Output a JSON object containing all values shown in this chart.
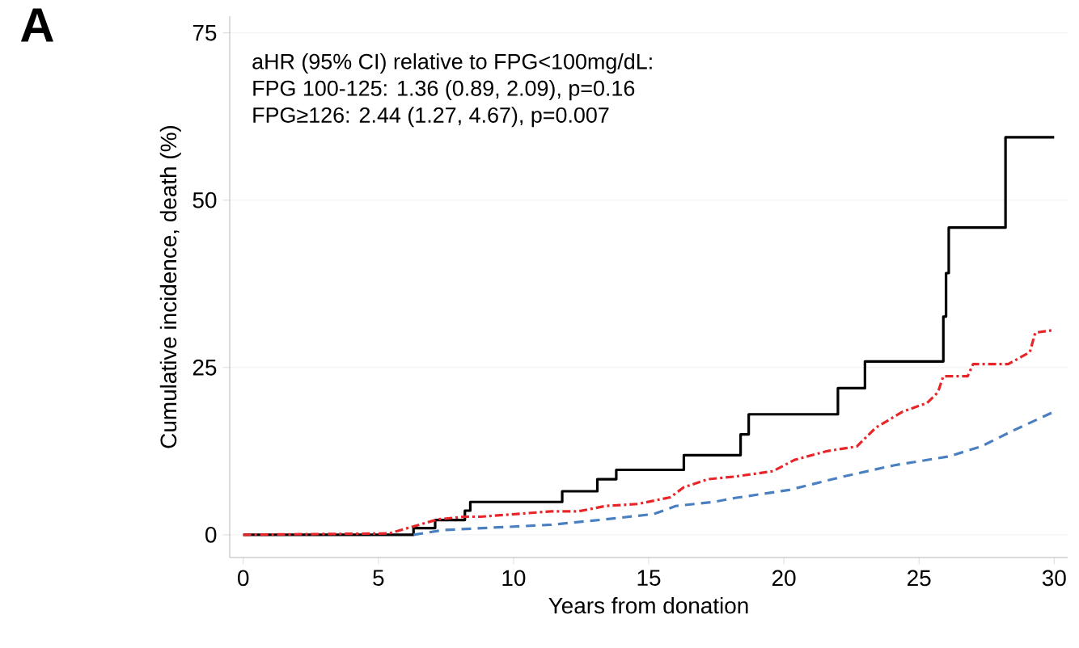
{
  "chart_data": {
    "type": "line",
    "title": "A",
    "xlabel": "Years from donation",
    "ylabel": "Cumulative incidence, death (%)",
    "annotations": [
      "aHR (95% CI) relative to FPG<100mg/dL:",
      "FPG 100-125: 1.36 (0.89, 2.09), p=0.16",
      "FPG≥126:      2.44 (1.27, 4.67), p=0.007"
    ],
    "xlim": [
      -0.5,
      30.5
    ],
    "ylim": [
      -3.4,
      77.5
    ],
    "xticks": [
      0,
      5,
      10,
      15,
      20,
      25,
      30
    ],
    "yticks": [
      0,
      25,
      50,
      75
    ],
    "grid": "y",
    "series": [
      {
        "type": "step",
        "color": "#000000",
        "line_style": "solid",
        "x": [
          0,
          6.3,
          7.1,
          8.2,
          8.4,
          11.8,
          13.1,
          13.8,
          16.3,
          18.4,
          18.7,
          22.0,
          23.0,
          25.9,
          26.0,
          26.1,
          28.2,
          30
        ],
        "values": [
          0,
          1.0,
          2.2,
          3.6,
          4.9,
          6.5,
          8.3,
          9.7,
          11.9,
          15.0,
          18.0,
          21.9,
          25.9,
          32.6,
          39.1,
          45.9,
          59.4,
          59.4
        ]
      },
      {
        "color": "#e8262a",
        "line_style": "dashdot",
        "x": [
          0,
          5.4,
          7.2,
          8.2,
          8.8,
          11.4,
          12.4,
          13.4,
          14.6,
          15.8,
          16.3,
          17.2,
          18.2,
          19.6,
          20.4,
          21.6,
          22.7,
          23.4,
          24.4,
          25.3,
          25.7,
          25.9,
          26.8,
          27.0,
          28.3,
          29.1,
          29.3,
          30
        ],
        "values": [
          0,
          0.2,
          2.3,
          2.7,
          2.7,
          3.5,
          3.5,
          4.3,
          4.6,
          5.6,
          7.1,
          8.3,
          8.7,
          9.5,
          11.2,
          12.5,
          13.2,
          16.0,
          18.4,
          19.7,
          21.3,
          23.7,
          23.7,
          25.5,
          25.5,
          27.3,
          30.2,
          30.6
        ]
      },
      {
        "color": "#4a7fc1",
        "line_style": "dashed",
        "x": [
          6.3,
          7.4,
          9.4,
          11.4,
          13.4,
          15.2,
          16.0,
          17.4,
          18.2,
          20.2,
          22.2,
          24.1,
          26.1,
          27.3,
          28.5,
          30
        ],
        "values": [
          0,
          0.7,
          1.1,
          1.5,
          2.3,
          3.1,
          4.3,
          4.9,
          5.5,
          6.7,
          8.7,
          10.4,
          11.7,
          13.2,
          15.6,
          18.4
        ]
      }
    ]
  }
}
